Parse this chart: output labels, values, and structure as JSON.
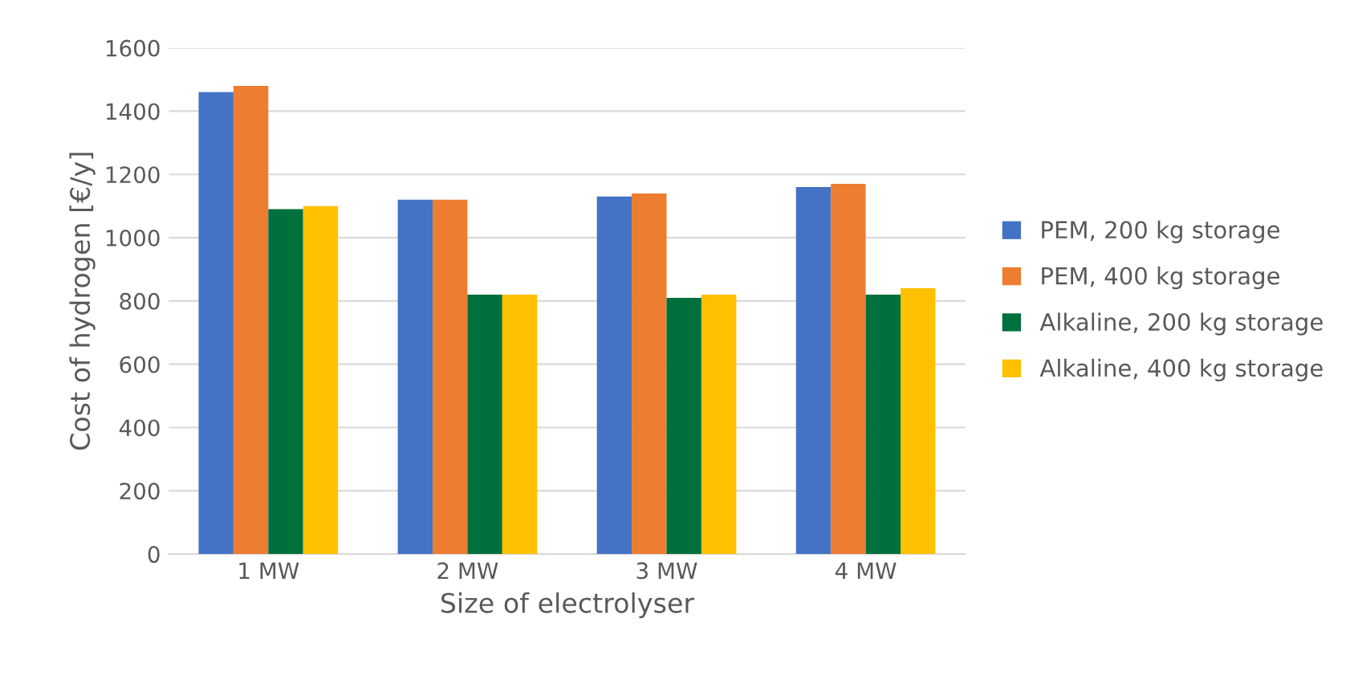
{
  "chart_data": {
    "type": "bar",
    "xlabel": "Size of electrolyser",
    "ylabel": "Cost of hydrogen [€/y]",
    "categories": [
      "1 MW",
      "2 MW",
      "3 MW",
      "4 MW"
    ],
    "series": [
      {
        "name": "PEM, 200 kg storage",
        "color": "#4472c4",
        "values": [
          1460,
          1120,
          1130,
          1160
        ]
      },
      {
        "name": "PEM, 400 kg storage",
        "color": "#ed7d31",
        "values": [
          1480,
          1120,
          1140,
          1170
        ]
      },
      {
        "name": "Alkaline, 200 kg storage",
        "color": "#00703c",
        "values": [
          1090,
          820,
          810,
          820
        ]
      },
      {
        "name": "Alkaline, 400 kg storage",
        "color": "#ffc000",
        "values": [
          1100,
          820,
          820,
          840
        ]
      }
    ],
    "ylim": [
      0,
      1600
    ],
    "yticks": [
      0,
      200,
      400,
      600,
      800,
      1000,
      1200,
      1400,
      1600
    ],
    "grid": "y",
    "legend": "right"
  }
}
